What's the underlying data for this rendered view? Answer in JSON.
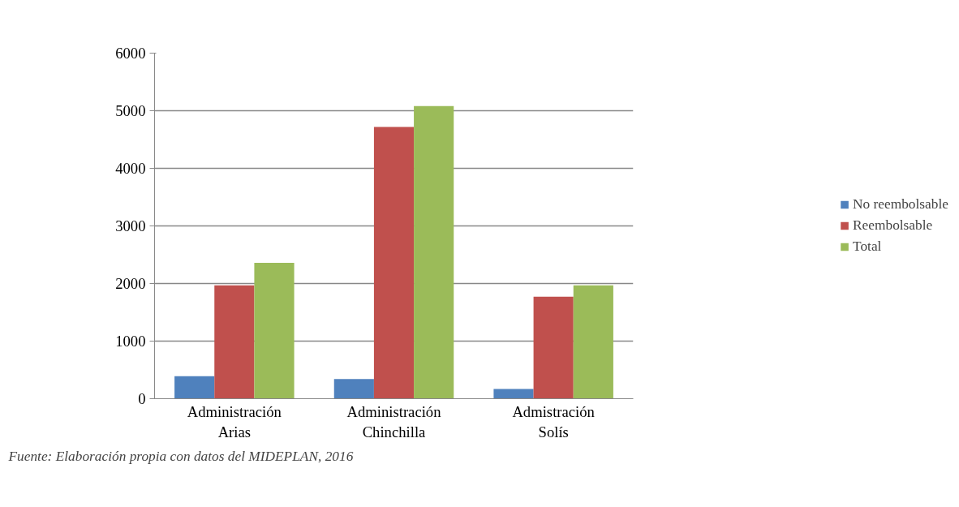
{
  "chart_data": {
    "type": "bar",
    "categories": [
      "Administración Arias",
      "Administración Chinchilla",
      "Admistración Solís"
    ],
    "series": [
      {
        "name": "No reembolsable",
        "color": "#4f81bd",
        "values": [
          390,
          340,
          170
        ]
      },
      {
        "name": "Reembolsable",
        "color": "#c0504d",
        "values": [
          1970,
          4720,
          1770
        ]
      },
      {
        "name": "Total",
        "color": "#9bbb59",
        "values": [
          2360,
          5080,
          1970
        ]
      }
    ],
    "ylim": [
      0,
      6000
    ],
    "yticks": [
      0,
      1000,
      2000,
      3000,
      4000,
      5000,
      6000
    ],
    "grid": "y",
    "legend": "right",
    "annotations": [
      "Fuente: Elaboración propia con datos del MIDEPLAN, 2016"
    ]
  }
}
